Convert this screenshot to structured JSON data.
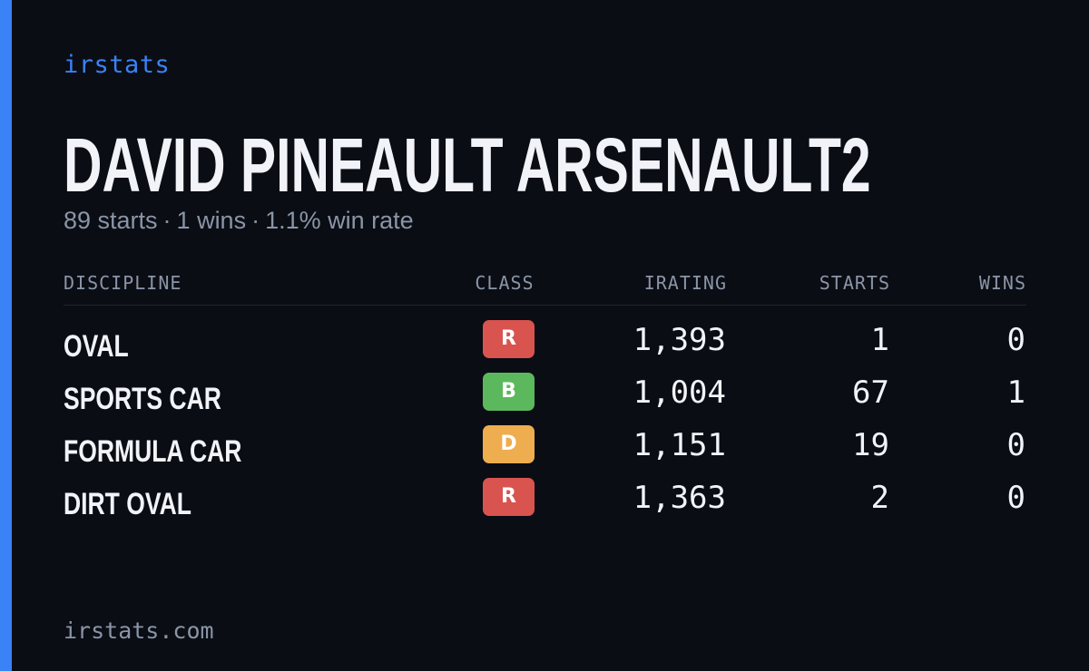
{
  "brand": "irstats",
  "driver": {
    "name": "DAVID PINEAULT ARSENAULT2",
    "starts_text": "89 starts",
    "wins_text": "1 wins",
    "winrate_text": "1.1% win rate",
    "separator": "·"
  },
  "table": {
    "headers": {
      "discipline": "DISCIPLINE",
      "class": "CLASS",
      "irating": "IRATING",
      "starts": "STARTS",
      "wins": "WINS"
    },
    "rows": [
      {
        "discipline": "OVAL",
        "class": "R",
        "class_color": "#d9534f",
        "irating": "1,393",
        "starts": "1",
        "wins": "0"
      },
      {
        "discipline": "SPORTS CAR",
        "class": "B",
        "class_color": "#5cb85c",
        "irating": "1,004",
        "starts": "67",
        "wins": "1"
      },
      {
        "discipline": "FORMULA CAR",
        "class": "D",
        "class_color": "#eead4e",
        "irating": "1,151",
        "starts": "19",
        "wins": "0"
      },
      {
        "discipline": "DIRT OVAL",
        "class": "R",
        "class_color": "#d9534f",
        "irating": "1,363",
        "starts": "2",
        "wins": "0"
      }
    ]
  },
  "footer": "irstats.com",
  "colors": {
    "background": "#0a0d14",
    "accent": "#3b82f6",
    "text_primary": "#f1f3f8",
    "text_muted": "#8b95a7"
  }
}
